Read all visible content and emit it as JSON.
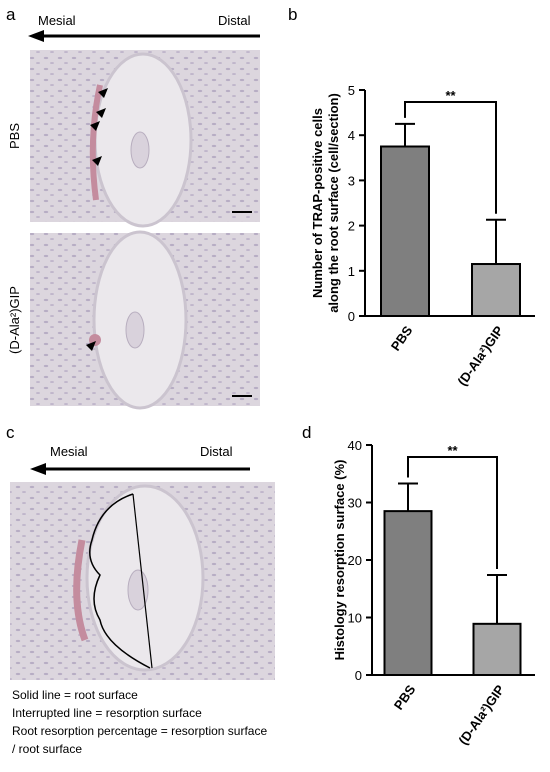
{
  "panel_a": {
    "label": "a",
    "mesial": "Mesial",
    "distal": "Distal",
    "row_labels": [
      "PBS",
      "(D-Ala²)GIP"
    ]
  },
  "panel_c": {
    "label": "c",
    "mesial": "Mesial",
    "distal": "Distal",
    "notes": [
      "Solid line = root surface",
      "Interrupted line = resorption surface",
      "Root resorption percentage = resorption surface",
      "/ root surface"
    ]
  },
  "chart_data": [
    {
      "type": "bar",
      "panel_label": "b",
      "ylabel": [
        "Number of TRAP-positive cells",
        "along the root surface (cell/section)"
      ],
      "categories": [
        "PBS",
        "(D-Ala²)GIP"
      ],
      "values": [
        3.75,
        1.15
      ],
      "errors": [
        0.5,
        0.98
      ],
      "colors": [
        "#7f7f7f",
        "#a6a6a6"
      ],
      "ylim": [
        0,
        5
      ],
      "yticks": [
        0,
        1,
        2,
        3,
        4,
        5
      ],
      "significance": "**"
    },
    {
      "type": "bar",
      "panel_label": "d",
      "ylabel": [
        "Histology resorption surface (%)"
      ],
      "categories": [
        "PBS",
        "(D-Ala²)GIP"
      ],
      "values": [
        28.5,
        8.9
      ],
      "errors": [
        4.8,
        8.5
      ],
      "colors": [
        "#7f7f7f",
        "#a6a6a6"
      ],
      "ylim": [
        0,
        40
      ],
      "yticks": [
        0,
        10,
        20,
        30,
        40
      ],
      "significance": "**"
    }
  ]
}
